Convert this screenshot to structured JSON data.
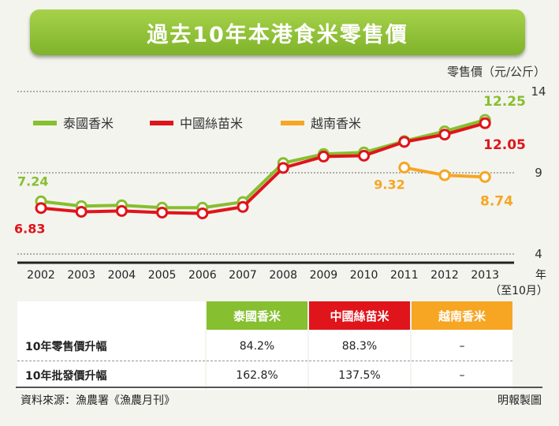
{
  "title": "過去10年本港食米零售價",
  "chart_data": {
    "type": "line",
    "unit_label": "零售價（元/公斤）",
    "x": [
      "2002",
      "2003",
      "2004",
      "2005",
      "2006",
      "2007",
      "2008",
      "2009",
      "2010",
      "2011",
      "2012",
      "2013"
    ],
    "x_unit": "年",
    "x_note": "（至10月）",
    "yticks": [
      "14",
      "9",
      "4"
    ],
    "ylim": [
      4,
      14
    ],
    "series": [
      {
        "name": "泰國香米",
        "color": "#86bf2f",
        "values": [
          7.24,
          6.95,
          7.0,
          6.85,
          6.85,
          7.2,
          9.6,
          10.15,
          10.25,
          10.95,
          11.55,
          12.25
        ]
      },
      {
        "name": "中國絲苗米",
        "color": "#e0141b",
        "values": [
          6.83,
          6.6,
          6.65,
          6.55,
          6.5,
          6.9,
          9.3,
          10.0,
          10.05,
          10.9,
          11.35,
          12.05
        ]
      },
      {
        "name": "越南香米",
        "color": "#f6a623",
        "values": [
          null,
          null,
          null,
          null,
          null,
          null,
          null,
          null,
          null,
          9.32,
          8.85,
          8.74
        ]
      }
    ],
    "labels": {
      "thai_start": "7.24",
      "china_start": "6.83",
      "thai_end": "12.25",
      "china_end": "12.05",
      "viet_start": "9.32",
      "viet_end": "8.74"
    }
  },
  "table": {
    "headers": [
      "泰國香米",
      "中國絲苗米",
      "越南香米"
    ],
    "header_colors": [
      "#86bf2f",
      "#e0141b",
      "#f6a623"
    ],
    "rows": [
      {
        "label": "10年零售價升幅",
        "values": [
          "84.2%",
          "88.3%",
          "–"
        ]
      },
      {
        "label": "10年批發價升幅",
        "values": [
          "162.8%",
          "137.5%",
          "–"
        ]
      }
    ]
  },
  "footer": {
    "source": "資料來源：漁農署《漁農月刊》",
    "credit": "明報製圖"
  }
}
